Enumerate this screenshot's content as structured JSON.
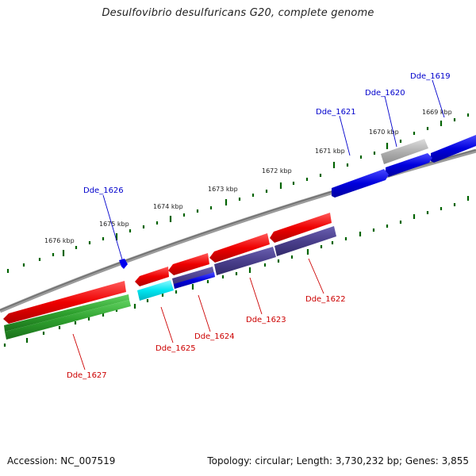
{
  "title": "Desulfovibrio desulfuricans G20, complete genome",
  "footer": {
    "accession": "Accession: NC_007519",
    "summary": "Topology: circular; Length: 3,730,232 bp; Genes: 3,855"
  },
  "colors": {
    "backbone": "#808080",
    "tick": "#006400",
    "forward_gene": "#0000dd",
    "reverse_gene": "#ee0000",
    "forward_label": "#0000cc",
    "reverse_label": "#cc0000",
    "pseudo_gene": "#b0b0b0",
    "cyan_feature": "#00e5f0",
    "navy_feature": "#4a3f8c",
    "green_feature": "#2ea02e"
  },
  "scale_labels": [
    "1669 kbp",
    "1670 kbp",
    "1671 kbp",
    "1672 kbp",
    "1673 kbp",
    "1674 kbp",
    "1675 kbp",
    "1676 kbp"
  ],
  "forward_genes": [
    {
      "id": "Dde_1619",
      "color": "blue"
    },
    {
      "id": "Dde_1620",
      "color": "blue"
    },
    {
      "id": "Dde_1621",
      "color": "blue"
    },
    {
      "id": "Dde_1626",
      "color": "blue"
    }
  ],
  "reverse_genes": [
    {
      "id": "Dde_1622",
      "color": "red"
    },
    {
      "id": "Dde_1623",
      "color": "red"
    },
    {
      "id": "Dde_1624",
      "color": "red"
    },
    {
      "id": "Dde_1625",
      "color": "red"
    },
    {
      "id": "Dde_1627",
      "color": "red"
    }
  ],
  "feature_rows": [
    "pseudo gene (grey)",
    "cyan feature",
    "navy features",
    "green features"
  ]
}
